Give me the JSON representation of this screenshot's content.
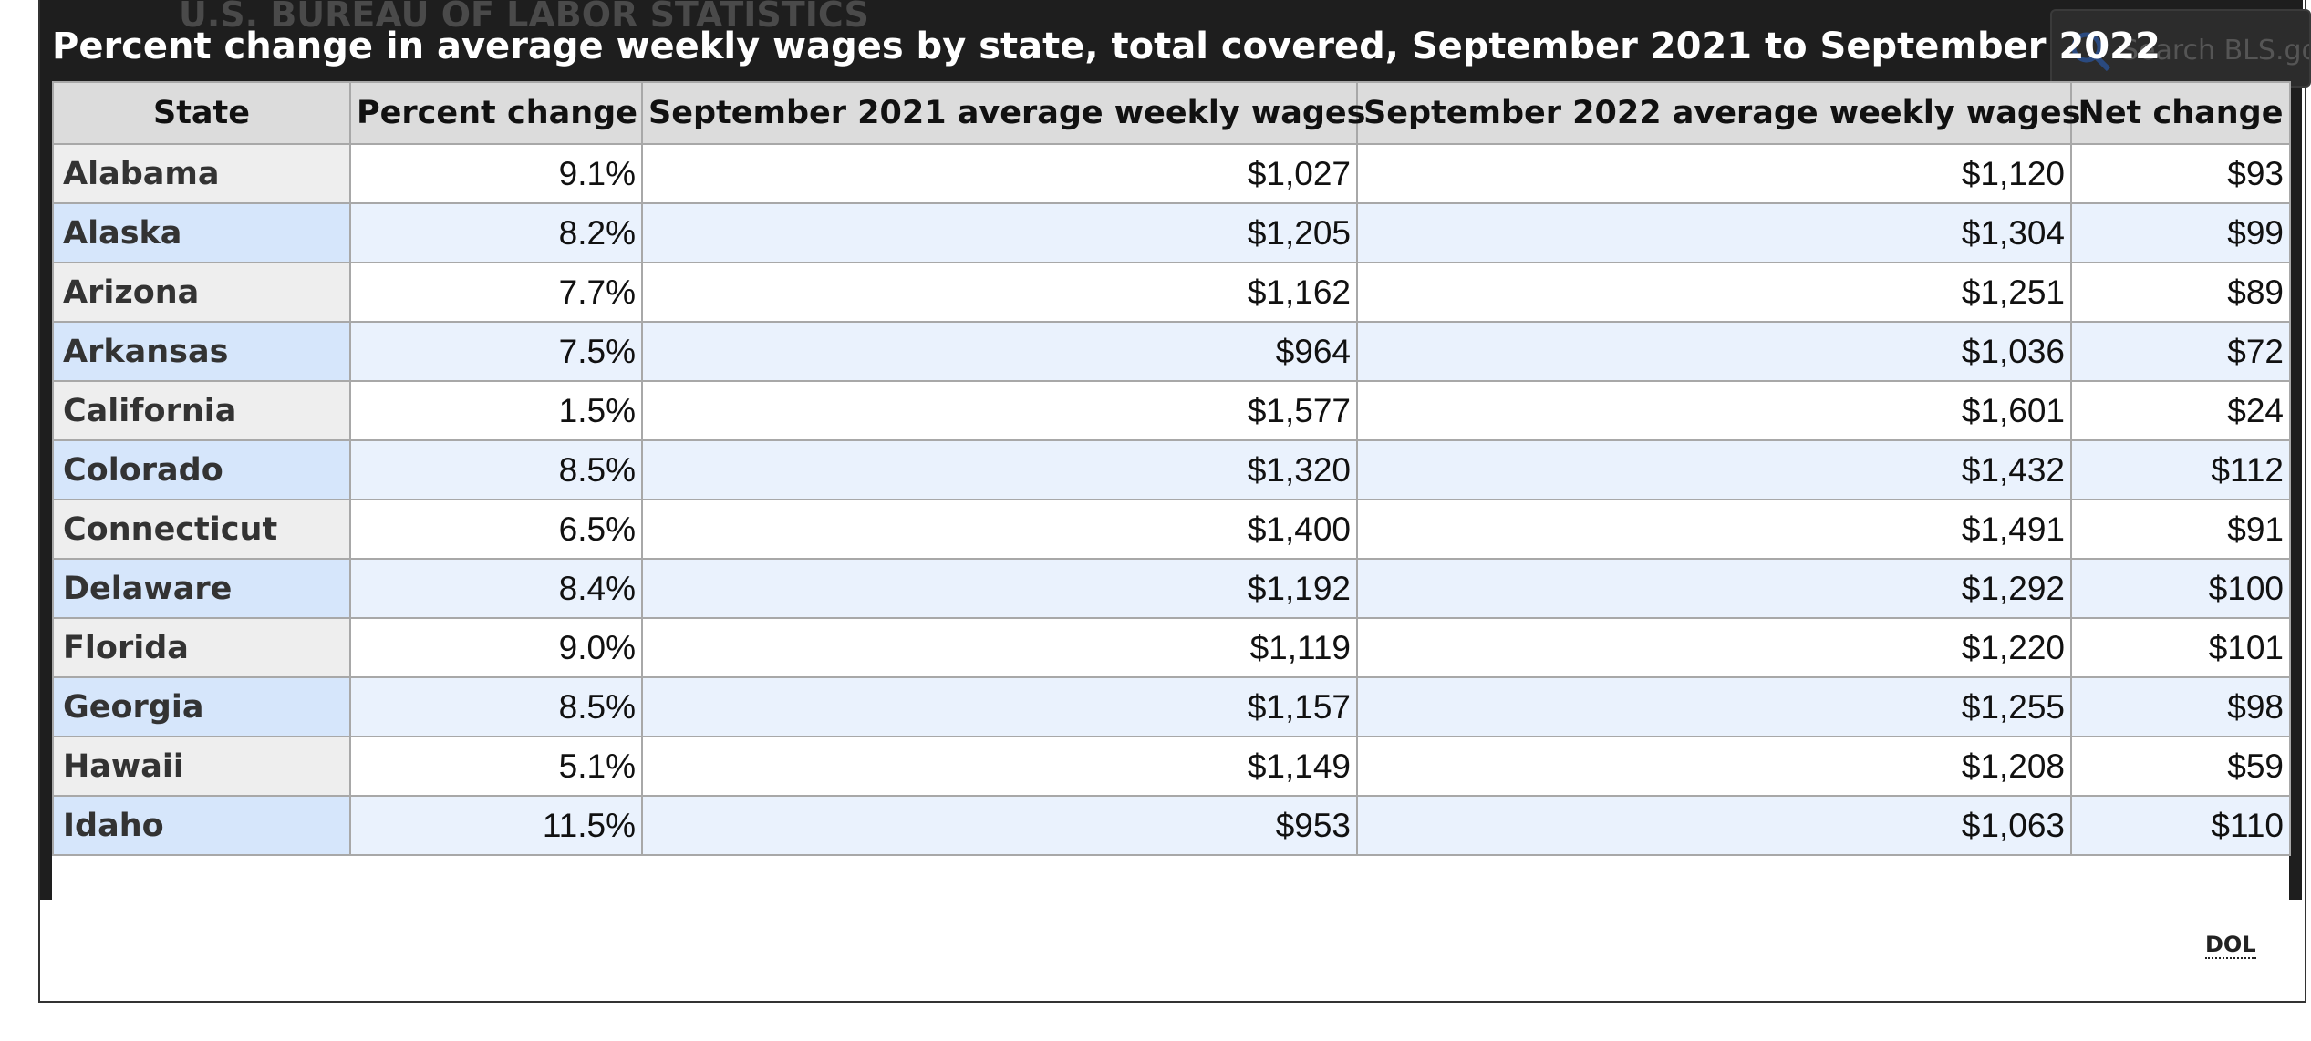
{
  "header": {
    "logo_text": "U.S. BUREAU OF LABOR STATISTICS",
    "search_placeholder": "Search BLS.gov"
  },
  "table": {
    "title": "Percent change in average weekly wages by state, total covered, September 2021 to September 2022",
    "columns": [
      "State",
      "Percent change",
      "September 2021 average weekly wages",
      "September 2022 average weekly wages",
      "Net change"
    ],
    "rows": [
      [
        "Alabama",
        "9.1%",
        "$1,027",
        "$1,120",
        "$93"
      ],
      [
        "Alaska",
        "8.2%",
        "$1,205",
        "$1,304",
        "$99"
      ],
      [
        "Arizona",
        "7.7%",
        "$1,162",
        "$1,251",
        "$89"
      ],
      [
        "Arkansas",
        "7.5%",
        "$964",
        "$1,036",
        "$72"
      ],
      [
        "California",
        "1.5%",
        "$1,577",
        "$1,601",
        "$24"
      ],
      [
        "Colorado",
        "8.5%",
        "$1,320",
        "$1,432",
        "$112"
      ],
      [
        "Connecticut",
        "6.5%",
        "$1,400",
        "$1,491",
        "$91"
      ],
      [
        "Delaware",
        "8.4%",
        "$1,192",
        "$1,292",
        "$100"
      ],
      [
        "Florida",
        "9.0%",
        "$1,119",
        "$1,220",
        "$101"
      ],
      [
        "Georgia",
        "8.5%",
        "$1,157",
        "$1,255",
        "$98"
      ],
      [
        "Hawaii",
        "5.1%",
        "$1,149",
        "$1,208",
        "$59"
      ],
      [
        "Idaho",
        "11.5%",
        "$953",
        "$1,063",
        "$110"
      ]
    ]
  },
  "footer": {
    "source": "DOL"
  }
}
